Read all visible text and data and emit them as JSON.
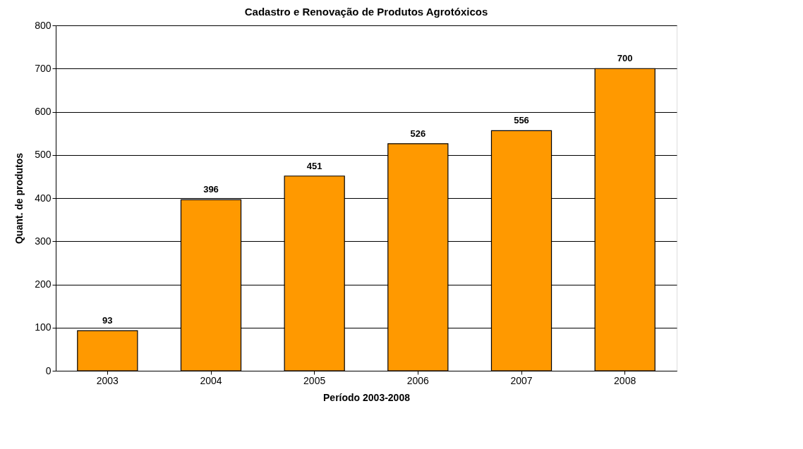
{
  "chart_data": {
    "type": "bar",
    "title": "Cadastro e Renovação de Produtos Agrotóxicos",
    "xlabel": "Período 2003-2008",
    "ylabel": "Quant. de produtos",
    "categories": [
      "2003",
      "2004",
      "2005",
      "2006",
      "2007",
      "2008"
    ],
    "values": [
      93,
      396,
      451,
      526,
      556,
      700
    ],
    "color": "#ff9900",
    "ylim": [
      0,
      800
    ],
    "yticks": [
      0,
      100,
      200,
      300,
      400,
      500,
      600,
      700,
      800
    ],
    "grid": "y",
    "data_labels": true
  }
}
